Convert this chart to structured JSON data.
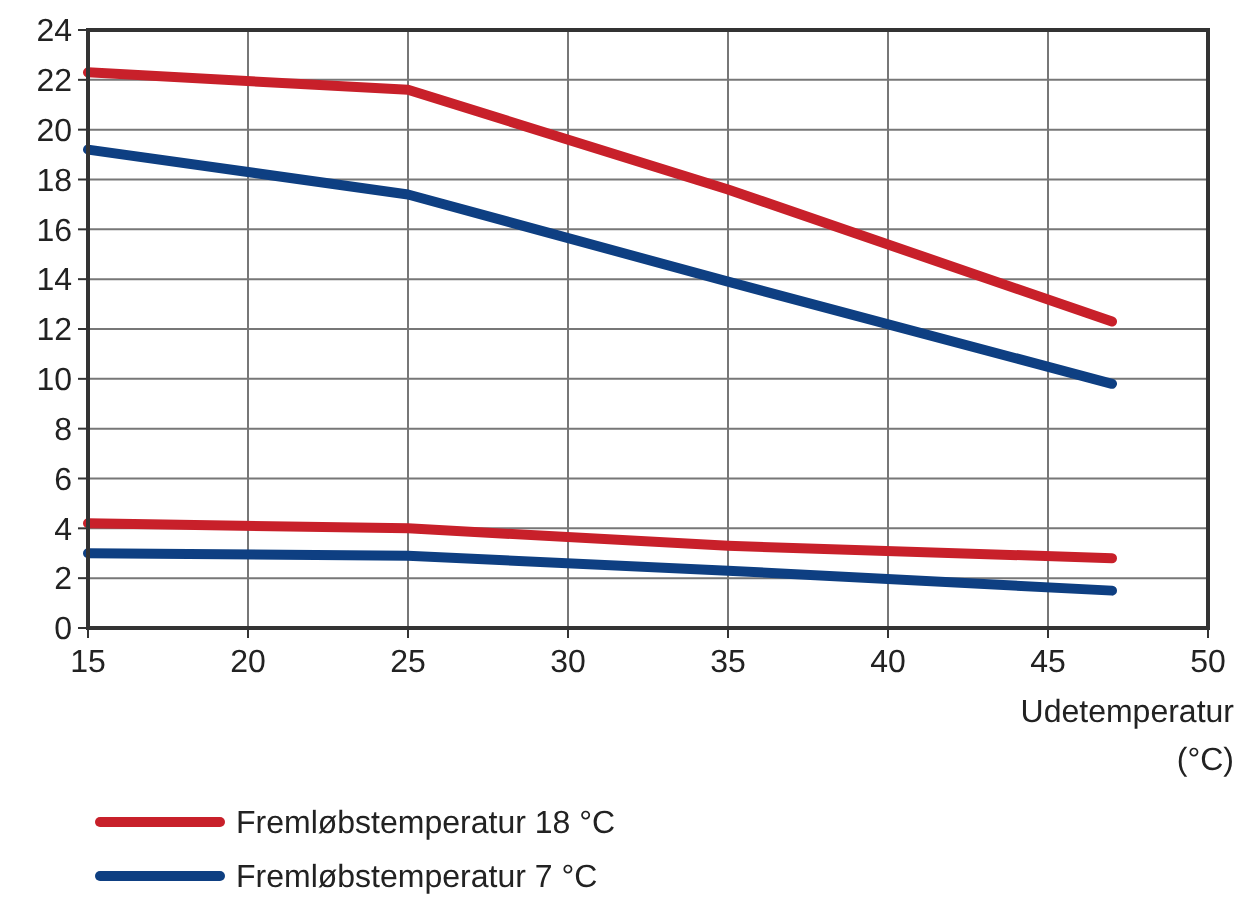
{
  "chart_data": {
    "type": "line",
    "xlabel": "Udetemperatur (°C)",
    "x": [
      15,
      25,
      35,
      47
    ],
    "series": [
      {
        "name": "Fremløbstemperatur 18 °C",
        "color": "#c8202a",
        "values": [
          22.3,
          21.6,
          17.6,
          12.3
        ]
      },
      {
        "name": "Fremløbstemperatur 7 °C",
        "color": "#0e3f82",
        "values": [
          19.2,
          17.4,
          13.9,
          9.8
        ]
      },
      {
        "color": "#c8202a",
        "values": [
          4.2,
          4.0,
          3.3,
          2.8
        ]
      },
      {
        "color": "#0e3f82",
        "values": [
          3.0,
          2.9,
          2.3,
          1.5
        ]
      }
    ],
    "xlim": [
      15,
      50
    ],
    "xticks": [
      15,
      20,
      25,
      30,
      35,
      40,
      45,
      50
    ],
    "ylim": [
      0,
      24
    ],
    "yticks": [
      0,
      2,
      4,
      6,
      8,
      10,
      12,
      14,
      16,
      18,
      20,
      22,
      24
    ],
    "grid": true,
    "legend": "bottom",
    "marker": "none",
    "line_style": "solid"
  }
}
